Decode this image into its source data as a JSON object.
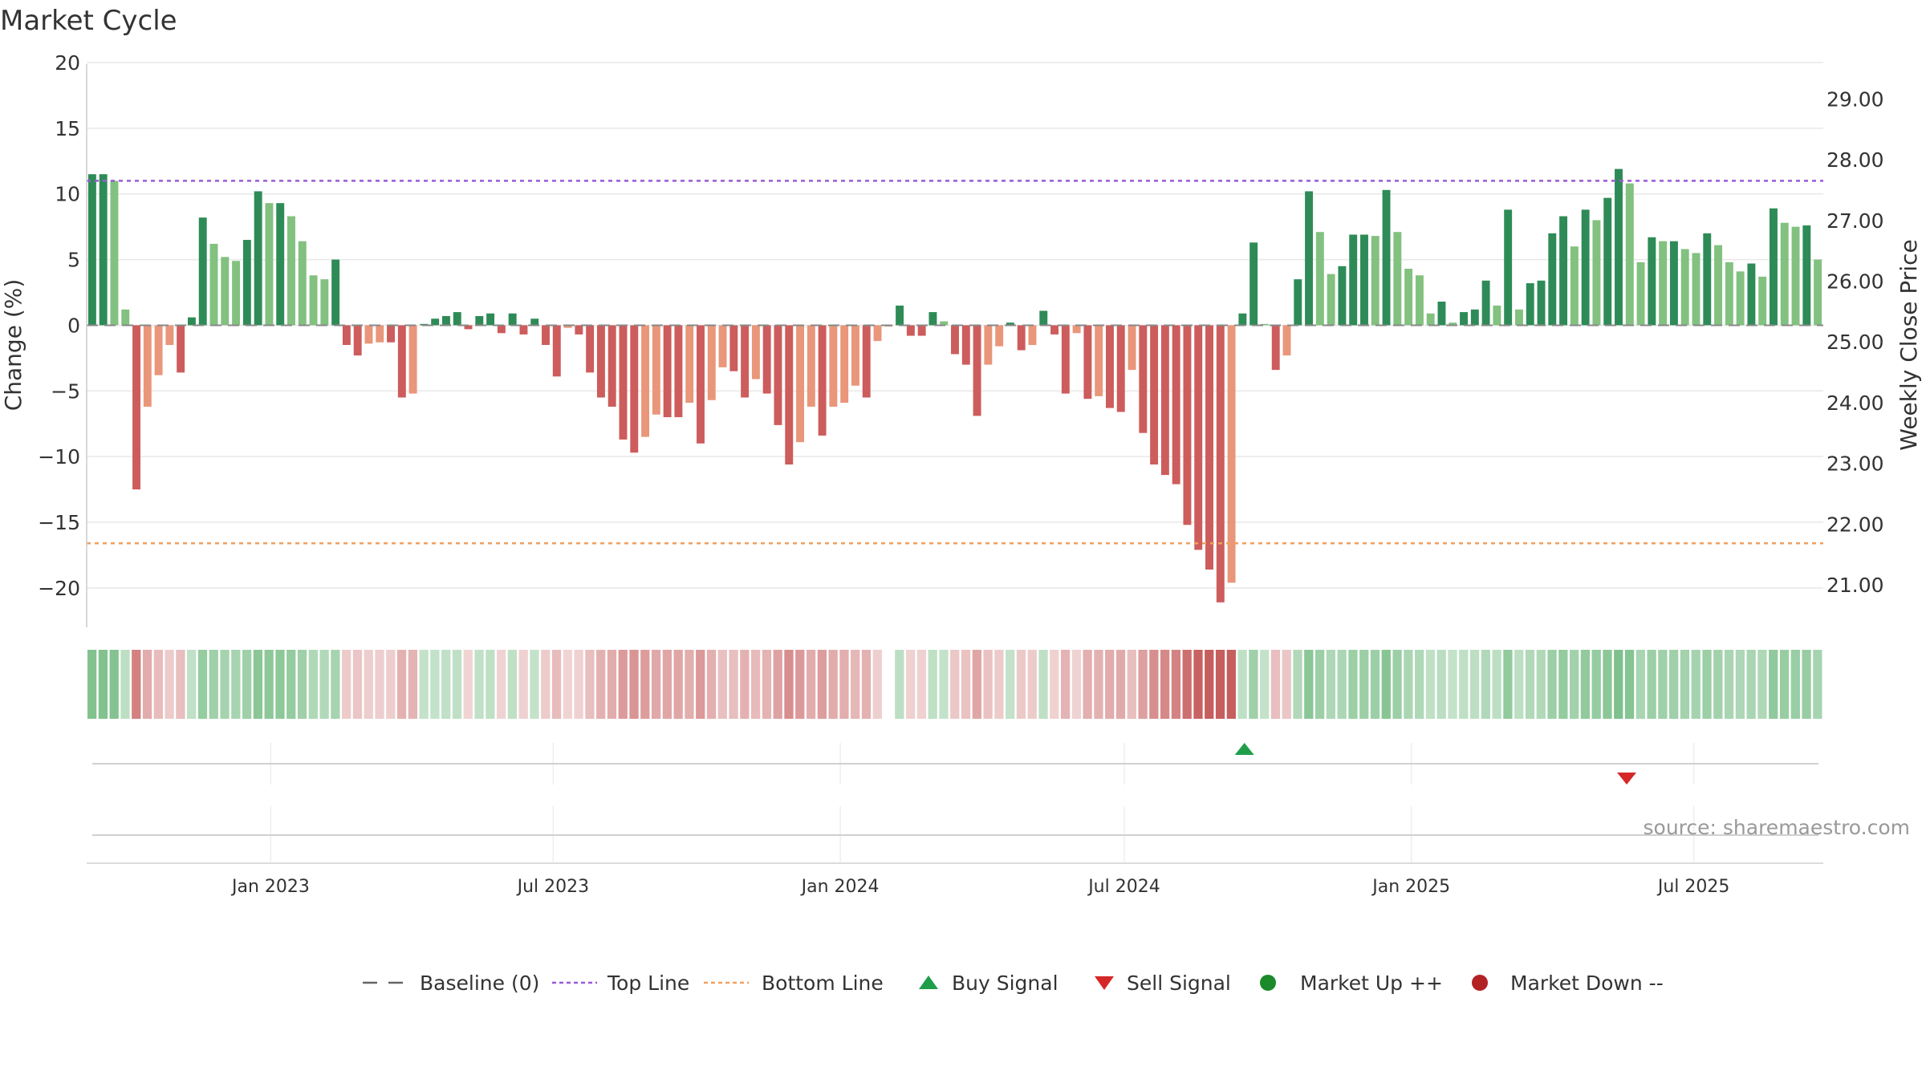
{
  "chart_data": {
    "type": "bar",
    "title": "Market Cycle",
    "ylabel": "Change (%)",
    "y2label": "Weekly Close Price",
    "ylim": [
      -23,
      20
    ],
    "y2lim": [
      20.3,
      29.6
    ],
    "yticks": [
      20,
      15,
      10,
      5,
      0,
      -5,
      -10,
      -15,
      -20
    ],
    "yticklabels": [
      "20",
      "15",
      "10",
      "5",
      "0",
      "−5",
      "−10",
      "−15",
      "−20"
    ],
    "y2ticks": [
      "29.00",
      "28.00",
      "27.00",
      "26.00",
      "25.00",
      "24.00",
      "23.00",
      "22.00",
      "21.00"
    ],
    "x_start": "2022-09-05",
    "x_end": "2025-09-22",
    "xticks": [
      {
        "date": "2023-01-01",
        "label": "Jan 2023"
      },
      {
        "date": "2023-07-01",
        "label": "Jul 2023"
      },
      {
        "date": "2024-01-01",
        "label": "Jan 2024"
      },
      {
        "date": "2024-07-01",
        "label": "Jul 2024"
      },
      {
        "date": "2025-01-01",
        "label": "Jan 2025"
      },
      {
        "date": "2025-07-01",
        "label": "Jul 2025"
      }
    ],
    "top_line": 11.0,
    "bottom_line": -16.6,
    "grid": true,
    "series": [
      {
        "name": "Change (%)",
        "values": [
          11.5,
          11.5,
          11.0,
          1.2,
          -12.5,
          -6.2,
          -3.8,
          -1.5,
          -3.6,
          0.6,
          8.2,
          6.2,
          5.2,
          4.9,
          6.5,
          10.2,
          9.3,
          9.3,
          8.3,
          6.4,
          3.8,
          3.5,
          5.0,
          -1.5,
          -2.3,
          -1.4,
          -1.3,
          -1.3,
          -5.5,
          -5.2,
          0.1,
          0.5,
          0.7,
          1.0,
          -0.3,
          0.7,
          0.9,
          -0.6,
          0.9,
          -0.7,
          0.5,
          -1.5,
          -3.9,
          -0.2,
          -0.7,
          -3.6,
          -5.5,
          -6.2,
          -8.7,
          -9.7,
          -8.5,
          -6.8,
          -7.0,
          -7.0,
          -5.9,
          -9.0,
          -5.7,
          -3.2,
          -3.5,
          -5.5,
          -4.1,
          -5.2,
          -7.6,
          -10.6,
          -8.9,
          -6.2,
          -8.4,
          -6.2,
          -5.9,
          -4.6,
          -5.5,
          -1.2,
          -0.1,
          1.5,
          -0.8,
          -0.8,
          1.0,
          0.3,
          -2.2,
          -3.0,
          -6.9,
          -3.0,
          -1.6,
          0.2,
          -1.9,
          -1.5,
          1.1,
          -0.7,
          -5.2,
          -0.6,
          -5.6,
          -5.4,
          -6.3,
          -6.6,
          -3.4,
          -8.2,
          -10.6,
          -11.4,
          -12.1,
          -15.2,
          -17.1,
          -18.6,
          -21.1,
          -19.6,
          0.9,
          6.3,
          0.1,
          -3.4,
          -2.3,
          3.5,
          10.2,
          7.1,
          3.9,
          4.5,
          6.9,
          6.9,
          6.8,
          10.3,
          7.1,
          4.3,
          3.8,
          0.9,
          1.8,
          0.2,
          1.0,
          1.2,
          3.4,
          1.5,
          8.8,
          1.2,
          3.2,
          3.4,
          7.0,
          8.3,
          6.0,
          8.8,
          8.0,
          9.7,
          11.9,
          10.8,
          4.8,
          6.7,
          6.4,
          6.4,
          5.8,
          5.5,
          7.0,
          6.1,
          4.8,
          4.1,
          4.7,
          3.7,
          8.9,
          7.8,
          7.5,
          7.6,
          5.0
        ]
      }
    ],
    "buy_signal_date": "2024-09-16",
    "sell_signal_date": "2025-05-19",
    "heat_gap_after_index": 71,
    "source": "source: sharemaestro.com",
    "legend_position": "bottom-center",
    "legend": [
      {
        "label": "Baseline (0)",
        "symbol": "dash-line",
        "color": "#666666"
      },
      {
        "label": "Top Line",
        "symbol": "dotted-line",
        "color": "#9b59d6"
      },
      {
        "label": "Bottom Line",
        "symbol": "dotted-line",
        "color": "#f0a060"
      },
      {
        "label": "Buy Signal",
        "symbol": "triangle-up",
        "color": "#1f9e4a"
      },
      {
        "label": "Sell Signal",
        "symbol": "triangle-down",
        "color": "#d62728"
      },
      {
        "label": "Market Up ++",
        "symbol": "circle",
        "color": "#1a8a2a"
      },
      {
        "label": "Market Down --",
        "symbol": "circle",
        "color": "#b22222"
      }
    ],
    "colors": {
      "up_strong": "#2e8b57",
      "up_light": "#82c17f",
      "down_strong": "#cd5c5c",
      "down_light": "#e9967a"
    }
  }
}
